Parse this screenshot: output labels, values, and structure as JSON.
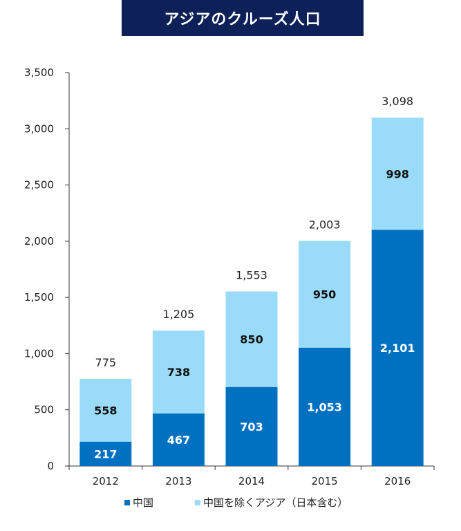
{
  "title": "アジアのクルーズ人口",
  "chart_data": {
    "type": "bar",
    "stacked": true,
    "categories": [
      "2012",
      "2013",
      "2014",
      "2015",
      "2016"
    ],
    "series": [
      {
        "name": "中国",
        "values": [
          217,
          467,
          703,
          1053,
          2101
        ],
        "labels": [
          "217",
          "467",
          "703",
          "1,053",
          "2,101"
        ],
        "color": "#0070c0",
        "label_color": "#ffffff"
      },
      {
        "name": "中国を除くアジア（日本含む）",
        "values": [
          558,
          738,
          850,
          950,
          998
        ],
        "labels": [
          "558",
          "738",
          "850",
          "950",
          "998"
        ],
        "color": "#99dbf8",
        "label_color": "#111111"
      }
    ],
    "totals": [
      "775",
      "1,205",
      "1,553",
      "2,003",
      "3,098"
    ],
    "ylim": [
      0,
      3500
    ],
    "yticks": [
      0,
      500,
      1000,
      1500,
      2000,
      2500,
      3000,
      3500
    ],
    "ytick_labels": [
      "0",
      "500",
      "1,000",
      "1,500",
      "2,000",
      "2,500",
      "3,000",
      "3,500"
    ],
    "grid": false,
    "legend_position": "bottom"
  }
}
